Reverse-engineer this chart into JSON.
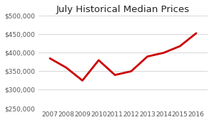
{
  "title": "July Historical Median Prices",
  "years": [
    2007,
    2008,
    2009,
    2010,
    2011,
    2012,
    2013,
    2014,
    2015,
    2016
  ],
  "prices": [
    385000,
    360000,
    325000,
    380000,
    340000,
    350000,
    390000,
    400000,
    418000,
    453000
  ],
  "line_color": "#cc0000",
  "line_width": 2.0,
  "ylim": [
    250000,
    500000
  ],
  "yticks": [
    250000,
    300000,
    350000,
    400000,
    450000,
    500000
  ],
  "background_color": "#ffffff",
  "grid_color": "#d0d0d0",
  "title_fontsize": 9.5,
  "tick_fontsize": 6.5
}
